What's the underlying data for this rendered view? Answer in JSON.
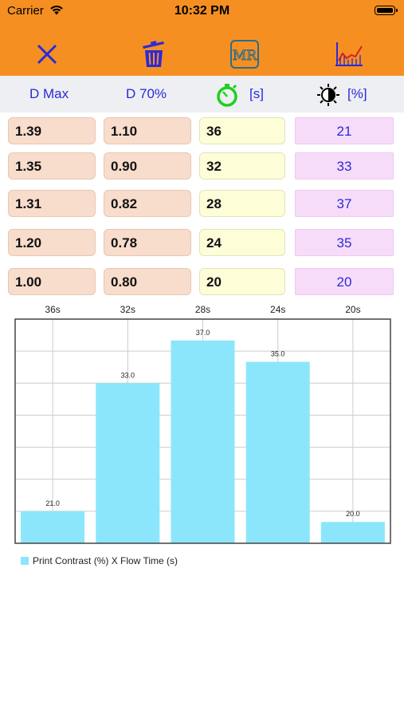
{
  "status_bar": {
    "carrier": "Carrier",
    "time": "10:32 PM"
  },
  "toolbar": {
    "close_icon": "close-icon",
    "delete_icon": "trash-icon",
    "mr_label": "MR",
    "chart_icon": "chart-icon"
  },
  "headers": {
    "dmax": "D Max",
    "d70": "D 70%",
    "time_unit": "[s]",
    "contrast_unit": "[%]"
  },
  "rows": [
    {
      "dmax": "1.39",
      "d70": "1.10",
      "time": "36",
      "contrast": "21"
    },
    {
      "dmax": "1.35",
      "d70": "0.90",
      "time": "32",
      "contrast": "33"
    },
    {
      "dmax": "1.31",
      "d70": "0.82",
      "time": "28",
      "contrast": "37"
    },
    {
      "dmax": "1.20",
      "d70": "0.78",
      "time": "24",
      "contrast": "35"
    },
    {
      "dmax": "1.00",
      "d70": "0.80",
      "time": "20",
      "contrast": "20"
    }
  ],
  "colors": {
    "accent": "#f58f22",
    "header_text": "#2a2ad8",
    "bar": "#8ce6fb",
    "grid": "#cccccc"
  },
  "chart_data": {
    "type": "bar",
    "categories": [
      "36s",
      "32s",
      "28s",
      "24s",
      "20s"
    ],
    "values": [
      21.0,
      33.0,
      37.0,
      35.0,
      20.0
    ],
    "value_labels": [
      "21.0",
      "33.0",
      "37.0",
      "35.0",
      "20.0"
    ],
    "series": [
      {
        "name": "Print Contrast (%) X Flow Time (s)",
        "values": [
          21.0,
          33.0,
          37.0,
          35.0,
          20.0
        ]
      }
    ],
    "ylim": [
      18.0,
      39.0
    ],
    "grid": true,
    "legend_position": "bottom-left"
  }
}
